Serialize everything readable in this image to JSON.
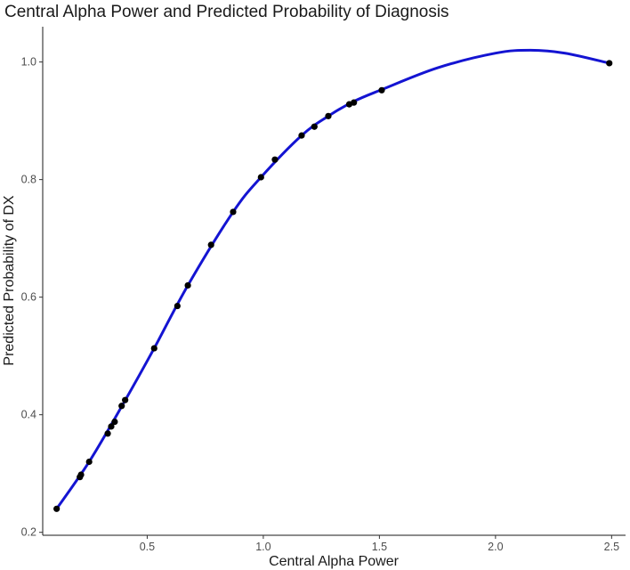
{
  "chart_data": {
    "type": "scatter",
    "title": "Central Alpha Power and Predicted Probability of Diagnosis",
    "xlabel": "Central Alpha Power",
    "ylabel": "Predicted Probability of DX",
    "xlim": [
      0.05,
      2.56
    ],
    "ylim": [
      0.195,
      1.06
    ],
    "x_ticks": [
      0.5,
      1.0,
      1.5,
      2.0,
      2.5
    ],
    "x_tick_labels": [
      "0.5",
      "1.0",
      "1.5",
      "2.0",
      "2.5"
    ],
    "y_ticks": [
      0.2,
      0.4,
      0.6,
      0.8,
      1.0
    ],
    "y_tick_labels": [
      "0.2",
      "0.4",
      "0.6",
      "0.8",
      "1.0"
    ],
    "grid": false,
    "legend": "none",
    "point_color": "#000000",
    "line_color": "#1414d2",
    "points": {
      "x": [
        0.11,
        0.21,
        0.215,
        0.25,
        0.33,
        0.345,
        0.36,
        0.39,
        0.405,
        0.53,
        0.63,
        0.675,
        0.775,
        0.87,
        0.99,
        1.05,
        1.165,
        1.22,
        1.28,
        1.37,
        1.39,
        1.51,
        2.49
      ],
      "y": [
        0.24,
        0.294,
        0.298,
        0.32,
        0.368,
        0.38,
        0.388,
        0.415,
        0.425,
        0.513,
        0.585,
        0.62,
        0.689,
        0.745,
        0.804,
        0.834,
        0.875,
        0.89,
        0.908,
        0.928,
        0.931,
        0.952,
        0.998
      ]
    },
    "curve": {
      "x": [
        0.11,
        0.25,
        0.4,
        0.53,
        0.675,
        0.87,
        0.99,
        1.165,
        1.28,
        1.39,
        1.51,
        1.75,
        2.0,
        2.15,
        2.3,
        2.49
      ],
      "y": [
        0.24,
        0.32,
        0.421,
        0.513,
        0.62,
        0.745,
        0.804,
        0.875,
        0.908,
        0.933,
        0.953,
        0.99,
        1.015,
        1.02,
        1.015,
        0.998
      ]
    }
  }
}
